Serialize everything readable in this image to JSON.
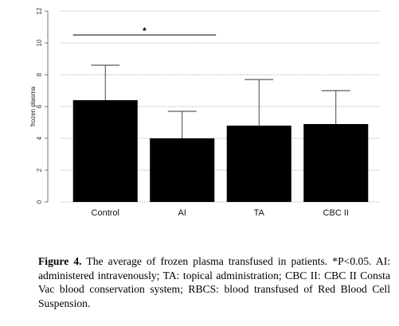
{
  "chart_data": {
    "type": "bar",
    "categories": [
      "Control",
      "AI",
      "TA",
      "CBC II"
    ],
    "values": [
      6.4,
      4.0,
      4.8,
      4.9
    ],
    "errors_upper": [
      8.6,
      5.7,
      7.7,
      7.0
    ],
    "ylabel": "frozen plasma",
    "ylim": [
      0,
      12
    ],
    "yticks": [
      0,
      2,
      4,
      6,
      8,
      10,
      12
    ],
    "grid": true,
    "significance": {
      "label": "*",
      "from": "Control",
      "to": "AI"
    },
    "bar_color": "#000000"
  },
  "caption": {
    "label": "Figure 4.",
    "text": " The average of frozen plasma transfused in patients. *P<0.05. AI: administered intravenously; TA: topical administration; CBC II: CBC II Consta Vac blood conservation system; RBCS: blood transfused of Red Blood Cell Suspension."
  }
}
